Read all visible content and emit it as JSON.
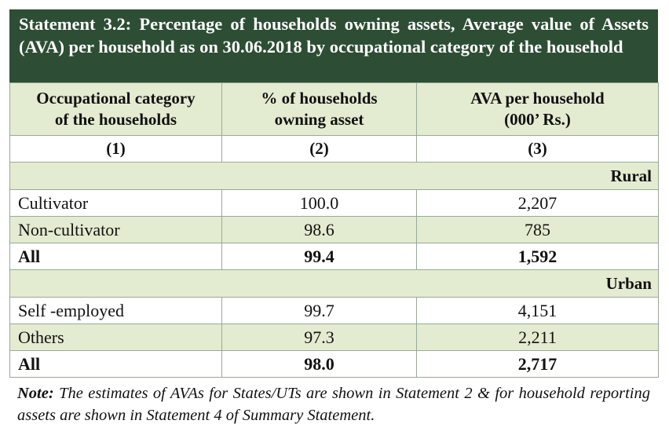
{
  "title": "Statement 3.2: Percentage of households owning assets, Average value of Assets (AVA) per household as on 30.06.2018 by occupational category of the household",
  "columns": [
    {
      "label_line1": "Occupational category",
      "label_line2": "of the households",
      "number": "(1)"
    },
    {
      "label_line1": "% of  households",
      "label_line2": "owning asset",
      "number": "(2)"
    },
    {
      "label_line1": "AVA per household",
      "label_line2": "(000’ Rs.)",
      "number": "(3)"
    }
  ],
  "sections": [
    {
      "name": "Rural",
      "rows": [
        {
          "category": "Cultivator",
          "pct": "100.0",
          "ava": "2,207"
        },
        {
          "category": "Non-cultivator",
          "pct": "98.6",
          "ava": "785"
        },
        {
          "category": "All",
          "pct": "99.4",
          "ava": "1,592"
        }
      ]
    },
    {
      "name": "Urban",
      "rows": [
        {
          "category": "Self -employed",
          "pct": "99.7",
          "ava": "4,151"
        },
        {
          "category": "Others",
          "pct": "97.3",
          "ava": "2,211"
        },
        {
          "category": "All",
          "pct": "98.0",
          "ava": "2,717"
        }
      ]
    }
  ],
  "note": {
    "label": "Note:",
    "text": "The estimates of AVAs for States/UTs are shown in Statement 2 & for household reporting assets are shown in Statement 4 of Summary Statement."
  },
  "colors": {
    "title_bg": "#2d4e35",
    "band_bg": "#e3ecd0",
    "title_text": "#ffffff"
  }
}
